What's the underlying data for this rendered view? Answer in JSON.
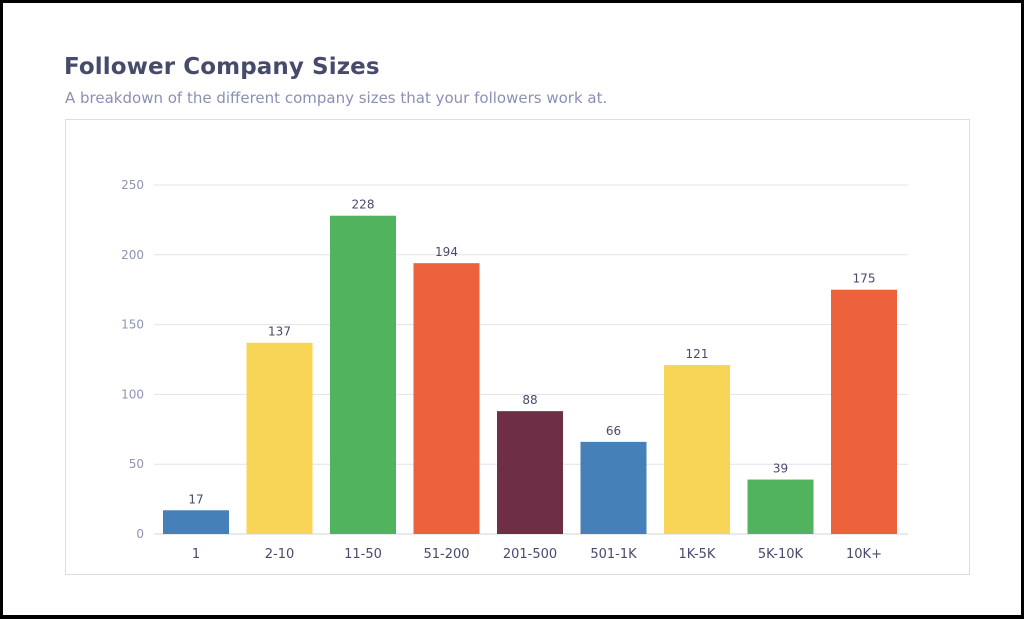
{
  "header": {
    "title": "Follower Company Sizes",
    "subtitle": "A breakdown of the different company sizes that your followers work at."
  },
  "chart_data": {
    "type": "bar",
    "categories": [
      "1",
      "2-10",
      "11-50",
      "51-200",
      "201-500",
      "501-1K",
      "1K-5K",
      "5K-10K",
      "10K+"
    ],
    "values": [
      17,
      137,
      228,
      194,
      88,
      66,
      121,
      39,
      175
    ],
    "bar_colors": [
      "#4580b8",
      "#f7d557",
      "#52b35f",
      "#eb623c",
      "#6d2e46",
      "#4580b8",
      "#f7d557",
      "#52b35f",
      "#eb623c"
    ],
    "ylim": [
      0,
      250
    ],
    "y_ticks": [
      0,
      50,
      100,
      150,
      200,
      250
    ],
    "data_labels": true,
    "grid": true,
    "legend": "none",
    "xlabel": "",
    "ylabel": ""
  }
}
